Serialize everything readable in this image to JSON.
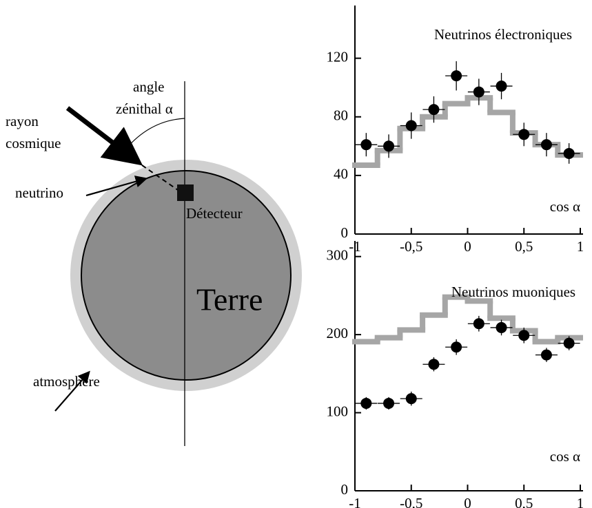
{
  "diagram": {
    "angle_label": [
      "angle",
      "zénithal α"
    ],
    "ray_label": [
      "rayon",
      "cosmique"
    ],
    "neutrino_label": "neutrino",
    "detector_label": "Détecteur",
    "earth_label": "Terre",
    "atmosphere_label": "atmosphère"
  },
  "chart_data": [
    {
      "type": "histogram-points",
      "title": "Neutrinos électroniques",
      "xlabel": "cos α",
      "x": [
        -0.9,
        -0.7,
        -0.5,
        -0.3,
        -0.1,
        0.1,
        0.3,
        0.5,
        0.7,
        0.9
      ],
      "values": [
        61,
        60,
        74,
        85,
        108,
        97,
        101,
        68,
        61,
        55
      ],
      "errors": [
        8,
        8,
        9,
        9,
        10,
        9,
        9,
        8,
        8,
        7
      ],
      "color": "#000000",
      "histogram": {
        "bins": [
          -1,
          -0.8,
          -0.6,
          -0.4,
          -0.2,
          0,
          0.2,
          0.4,
          0.6,
          0.8,
          1
        ],
        "values": [
          47,
          57,
          72,
          80,
          89,
          93,
          83,
          69,
          61,
          54
        ],
        "color": "#a6a6a6"
      },
      "xlim": [
        -1,
        1
      ],
      "ylim": [
        0,
        156
      ],
      "xticks": [
        -1,
        {
          "value": -0.5,
          "label": "-0,5"
        },
        0,
        {
          "value": 0.5,
          "label": "0,5"
        },
        1
      ],
      "yticks": [
        0,
        40,
        80,
        120
      ]
    },
    {
      "type": "histogram-points",
      "title": "Neutrinos muoniques",
      "xlabel": "cos α",
      "x": [
        -0.9,
        -0.7,
        -0.5,
        -0.3,
        -0.1,
        0.1,
        0.3,
        0.5,
        0.7,
        0.9
      ],
      "values": [
        112,
        112,
        118,
        162,
        184,
        214,
        209,
        199,
        174,
        189
      ],
      "errors": [
        8,
        8,
        9,
        9,
        10,
        10,
        10,
        10,
        9,
        9
      ],
      "color": "#000000",
      "histogram": {
        "bins": [
          -1,
          -0.8,
          -0.6,
          -0.4,
          -0.2,
          0,
          0.2,
          0.4,
          0.6,
          0.8,
          1
        ],
        "values": [
          191,
          196,
          206,
          225,
          248,
          243,
          221,
          205,
          191,
          196
        ],
        "color": "#a6a6a6"
      },
      "xlim": [
        -1,
        1
      ],
      "ylim": [
        0,
        320
      ],
      "xticks": [
        -1,
        {
          "value": -0.5,
          "label": "-0,5"
        },
        0,
        {
          "value": 0.5,
          "label": "0,5"
        },
        1
      ],
      "yticks": [
        0,
        100,
        200,
        300
      ]
    }
  ]
}
